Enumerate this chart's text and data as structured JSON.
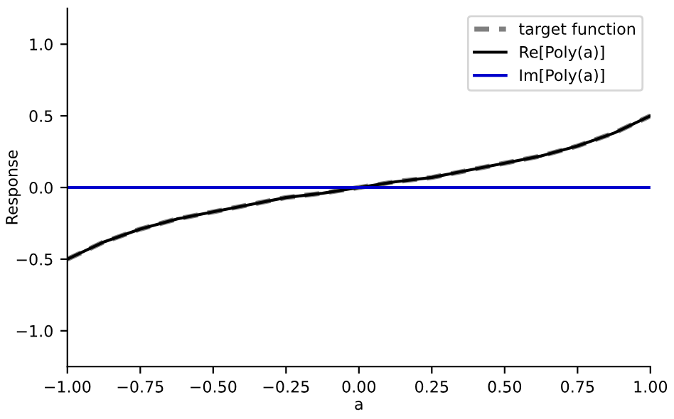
{
  "chart_data": {
    "type": "line",
    "xlabel": "a",
    "ylabel": "Response",
    "x": [
      -1.0,
      -0.875,
      -0.75,
      -0.625,
      -0.5,
      -0.375,
      -0.25,
      -0.125,
      0.0,
      0.125,
      0.25,
      0.375,
      0.5,
      0.625,
      0.75,
      0.875,
      1.0
    ],
    "series": [
      {
        "name": "target function",
        "color": "#7f7f7f",
        "line_style": "dashed",
        "values": [
          -0.5,
          -0.38,
          -0.29,
          -0.22,
          -0.17,
          -0.12,
          -0.07,
          -0.04,
          0.0,
          0.04,
          0.07,
          0.12,
          0.17,
          0.22,
          0.29,
          0.38,
          0.5
        ]
      },
      {
        "name": "Re[Poly(a)]",
        "color": "#000000",
        "line_style": "solid",
        "values": [
          -0.5,
          -0.38,
          -0.29,
          -0.22,
          -0.17,
          -0.12,
          -0.07,
          -0.04,
          0.0,
          0.04,
          0.07,
          0.12,
          0.17,
          0.22,
          0.29,
          0.38,
          0.5
        ]
      },
      {
        "name": "Im[Poly(a)]",
        "color": "#0000cc",
        "line_style": "solid",
        "values": [
          0,
          0,
          0,
          0,
          0,
          0,
          0,
          0,
          0,
          0,
          0,
          0,
          0,
          0,
          0,
          0,
          0
        ]
      }
    ],
    "xlim": [
      -1.0,
      1.0
    ],
    "xticks": [
      {
        "value": -1.0,
        "label": "−1.00"
      },
      {
        "value": -0.75,
        "label": "−0.75"
      },
      {
        "value": -0.5,
        "label": "−0.50"
      },
      {
        "value": -0.25,
        "label": "−0.25"
      },
      {
        "value": 0.0,
        "label": "0.00"
      },
      {
        "value": 0.25,
        "label": "0.25"
      },
      {
        "value": 0.5,
        "label": "0.50"
      },
      {
        "value": 0.75,
        "label": "0.75"
      },
      {
        "value": 1.0,
        "label": "1.00"
      }
    ],
    "ylim": [
      -1.25,
      1.25
    ],
    "yticks": [
      {
        "value": -1.0,
        "label": "−1.0"
      },
      {
        "value": -0.5,
        "label": "−0.5"
      },
      {
        "value": 0.0,
        "label": "0.0"
      },
      {
        "value": 0.5,
        "label": "0.5"
      },
      {
        "value": 1.0,
        "label": "1.0"
      }
    ],
    "legend": "top right",
    "grid": false,
    "marker": "none"
  }
}
